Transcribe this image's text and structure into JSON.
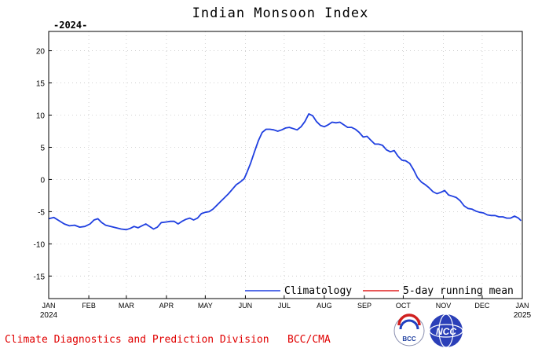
{
  "chart_data": {
    "type": "line",
    "title": "Indian Monsoon Index",
    "subtitle": "-2024-",
    "xlabel": "",
    "ylabel": "",
    "ylim": [
      -18.5,
      23
    ],
    "y_ticks": [
      20,
      15,
      10,
      5,
      0,
      -5,
      -10,
      -15
    ],
    "y_tick_labels": [
      "20",
      "15",
      "10",
      "5",
      "0",
      "-5",
      "-10",
      "-15"
    ],
    "x_domain": [
      "2024-01-01",
      "2025-01-01"
    ],
    "x_ticks": [
      {
        "date": "2024-01-01",
        "label": "JAN",
        "sublabel": "2024"
      },
      {
        "date": "2024-02-01",
        "label": "FEB",
        "sublabel": ""
      },
      {
        "date": "2024-03-01",
        "label": "MAR",
        "sublabel": ""
      },
      {
        "date": "2024-04-01",
        "label": "APR",
        "sublabel": ""
      },
      {
        "date": "2024-05-01",
        "label": "MAY",
        "sublabel": ""
      },
      {
        "date": "2024-06-01",
        "label": "JUN",
        "sublabel": ""
      },
      {
        "date": "2024-07-01",
        "label": "JUL",
        "sublabel": ""
      },
      {
        "date": "2024-08-01",
        "label": "AUG",
        "sublabel": ""
      },
      {
        "date": "2024-09-01",
        "label": "SEP",
        "sublabel": ""
      },
      {
        "date": "2024-10-01",
        "label": "OCT",
        "sublabel": ""
      },
      {
        "date": "2024-11-01",
        "label": "NOV",
        "sublabel": ""
      },
      {
        "date": "2024-12-01",
        "label": "DEC",
        "sublabel": ""
      },
      {
        "date": "2025-01-01",
        "label": "JAN",
        "sublabel": "2025"
      }
    ],
    "grid": true,
    "legend_position": "bottom-right",
    "series": [
      {
        "name": "Climatology",
        "color": "#1f3fe0",
        "points": [
          [
            "2024-01-01",
            -6.1
          ],
          [
            "2024-01-05",
            -5.9
          ],
          [
            "2024-01-09",
            -6.4
          ],
          [
            "2024-01-13",
            -6.9
          ],
          [
            "2024-01-17",
            -7.2
          ],
          [
            "2024-01-21",
            -7.1
          ],
          [
            "2024-01-25",
            -7.4
          ],
          [
            "2024-01-29",
            -7.3
          ],
          [
            "2024-02-02",
            -6.9
          ],
          [
            "2024-02-05",
            -6.3
          ],
          [
            "2024-02-08",
            -6.1
          ],
          [
            "2024-02-11",
            -6.7
          ],
          [
            "2024-02-14",
            -7.1
          ],
          [
            "2024-02-18",
            -7.3
          ],
          [
            "2024-02-22",
            -7.5
          ],
          [
            "2024-02-26",
            -7.7
          ],
          [
            "2024-03-01",
            -7.8
          ],
          [
            "2024-03-04",
            -7.6
          ],
          [
            "2024-03-07",
            -7.3
          ],
          [
            "2024-03-10",
            -7.5
          ],
          [
            "2024-03-13",
            -7.2
          ],
          [
            "2024-03-16",
            -6.9
          ],
          [
            "2024-03-19",
            -7.3
          ],
          [
            "2024-03-22",
            -7.7
          ],
          [
            "2024-03-25",
            -7.4
          ],
          [
            "2024-03-28",
            -6.7
          ],
          [
            "2024-04-01",
            -6.6
          ],
          [
            "2024-04-04",
            -6.5
          ],
          [
            "2024-04-07",
            -6.5
          ],
          [
            "2024-04-10",
            -6.9
          ],
          [
            "2024-04-13",
            -6.5
          ],
          [
            "2024-04-16",
            -6.2
          ],
          [
            "2024-04-19",
            -6.0
          ],
          [
            "2024-04-22",
            -6.3
          ],
          [
            "2024-04-25",
            -6.0
          ],
          [
            "2024-04-28",
            -5.3
          ],
          [
            "2024-05-01",
            -5.1
          ],
          [
            "2024-05-04",
            -5.0
          ],
          [
            "2024-05-07",
            -4.6
          ],
          [
            "2024-05-10",
            -4.0
          ],
          [
            "2024-05-13",
            -3.4
          ],
          [
            "2024-05-16",
            -2.8
          ],
          [
            "2024-05-19",
            -2.2
          ],
          [
            "2024-05-22",
            -1.5
          ],
          [
            "2024-05-25",
            -0.8
          ],
          [
            "2024-05-28",
            -0.4
          ],
          [
            "2024-05-31",
            0.1
          ],
          [
            "2024-06-02",
            1.0
          ],
          [
            "2024-06-05",
            2.5
          ],
          [
            "2024-06-08",
            4.3
          ],
          [
            "2024-06-11",
            6.0
          ],
          [
            "2024-06-14",
            7.3
          ],
          [
            "2024-06-17",
            7.8
          ],
          [
            "2024-06-20",
            7.8
          ],
          [
            "2024-06-23",
            7.7
          ],
          [
            "2024-06-26",
            7.5
          ],
          [
            "2024-06-29",
            7.7
          ],
          [
            "2024-07-02",
            8.0
          ],
          [
            "2024-07-05",
            8.1
          ],
          [
            "2024-07-08",
            7.9
          ],
          [
            "2024-07-11",
            7.7
          ],
          [
            "2024-07-14",
            8.2
          ],
          [
            "2024-07-17",
            9.0
          ],
          [
            "2024-07-20",
            10.2
          ],
          [
            "2024-07-23",
            9.9
          ],
          [
            "2024-07-26",
            9.0
          ],
          [
            "2024-07-29",
            8.4
          ],
          [
            "2024-08-01",
            8.2
          ],
          [
            "2024-08-04",
            8.5
          ],
          [
            "2024-08-07",
            8.9
          ],
          [
            "2024-08-10",
            8.8
          ],
          [
            "2024-08-13",
            8.9
          ],
          [
            "2024-08-16",
            8.5
          ],
          [
            "2024-08-19",
            8.1
          ],
          [
            "2024-08-22",
            8.1
          ],
          [
            "2024-08-25",
            7.8
          ],
          [
            "2024-08-28",
            7.3
          ],
          [
            "2024-08-31",
            6.6
          ],
          [
            "2024-09-03",
            6.7
          ],
          [
            "2024-09-06",
            6.1
          ],
          [
            "2024-09-09",
            5.5
          ],
          [
            "2024-09-12",
            5.5
          ],
          [
            "2024-09-15",
            5.3
          ],
          [
            "2024-09-18",
            4.6
          ],
          [
            "2024-09-21",
            4.3
          ],
          [
            "2024-09-24",
            4.5
          ],
          [
            "2024-09-27",
            3.6
          ],
          [
            "2024-09-30",
            3.0
          ],
          [
            "2024-10-03",
            2.9
          ],
          [
            "2024-10-06",
            2.5
          ],
          [
            "2024-10-09",
            1.5
          ],
          [
            "2024-10-12",
            0.3
          ],
          [
            "2024-10-15",
            -0.4
          ],
          [
            "2024-10-18",
            -0.8
          ],
          [
            "2024-10-21",
            -1.3
          ],
          [
            "2024-10-24",
            -1.9
          ],
          [
            "2024-10-27",
            -2.2
          ],
          [
            "2024-10-30",
            -2.0
          ],
          [
            "2024-11-02",
            -1.7
          ],
          [
            "2024-11-05",
            -2.4
          ],
          [
            "2024-11-08",
            -2.6
          ],
          [
            "2024-11-11",
            -2.8
          ],
          [
            "2024-11-14",
            -3.3
          ],
          [
            "2024-11-17",
            -4.1
          ],
          [
            "2024-11-20",
            -4.5
          ],
          [
            "2024-11-23",
            -4.6
          ],
          [
            "2024-11-26",
            -4.9
          ],
          [
            "2024-11-29",
            -5.1
          ],
          [
            "2024-12-02",
            -5.2
          ],
          [
            "2024-12-05",
            -5.5
          ],
          [
            "2024-12-08",
            -5.6
          ],
          [
            "2024-12-11",
            -5.6
          ],
          [
            "2024-12-14",
            -5.8
          ],
          [
            "2024-12-17",
            -5.8
          ],
          [
            "2024-12-20",
            -6.0
          ],
          [
            "2024-12-23",
            -6.0
          ],
          [
            "2024-12-26",
            -5.7
          ],
          [
            "2024-12-29",
            -6.0
          ],
          [
            "2024-12-31",
            -6.4
          ]
        ]
      },
      {
        "name": "5-day running mean",
        "color": "#e02020",
        "points": []
      }
    ]
  },
  "footer": {
    "credit": "Climate Diagnostics and Prediction Division   BCC/CMA",
    "credit_color": "#e00000",
    "logo_left_text": "BCC",
    "logo_right_text": "NCC"
  }
}
